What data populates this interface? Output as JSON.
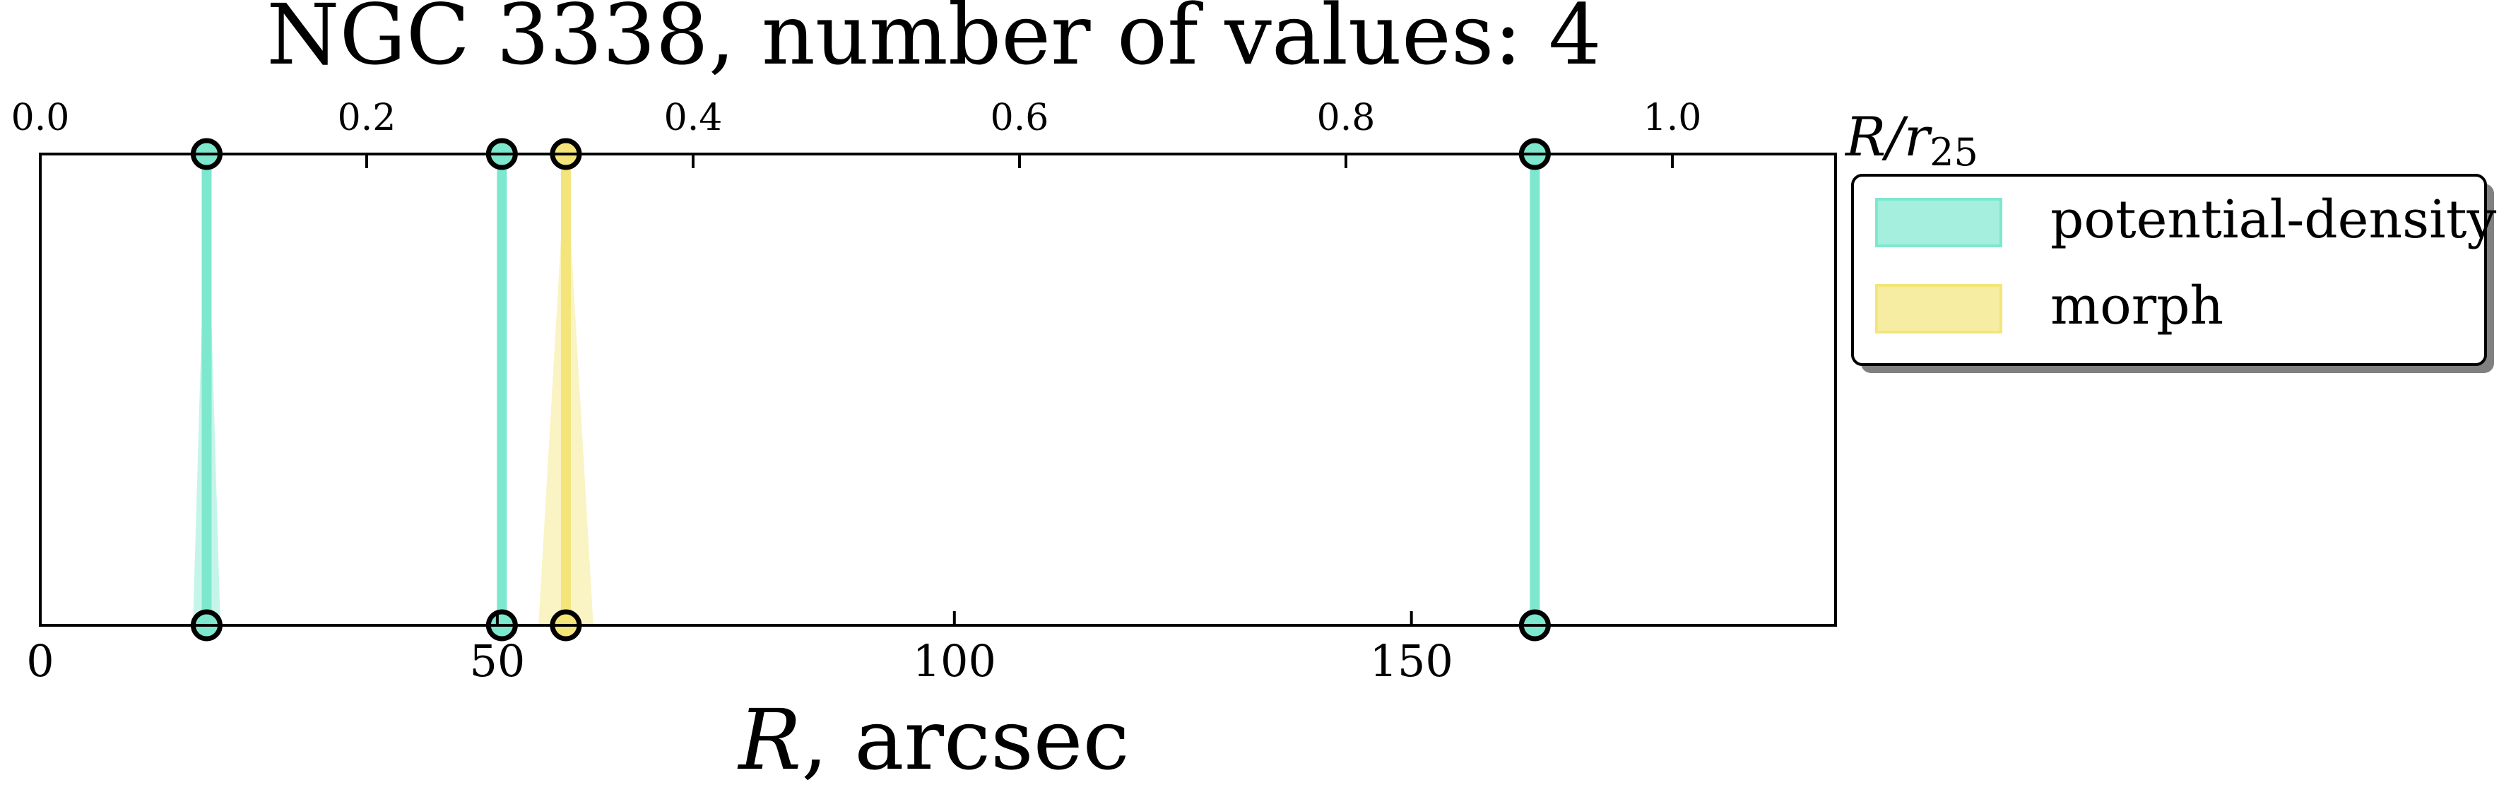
{
  "chart_data": {
    "type": "line",
    "title": "NGC 3338, number of values: 4",
    "xlabel": "R, arcsec",
    "xlabel_main": "R",
    "xlabel_unit": ", arcsec",
    "top_xlabel_main": "R/r",
    "top_xlabel_sub": "25",
    "xlim": [
      0,
      196.4
    ],
    "top_xlim": [
      0,
      1.1
    ],
    "x_ticks": [
      0,
      50,
      100,
      150
    ],
    "x_tick_labels": [
      "0",
      "50",
      "100",
      "150"
    ],
    "top_x_ticks": [
      0.0,
      0.2,
      0.4,
      0.6,
      0.8,
      1.0
    ],
    "top_x_tick_labels": [
      "0.0",
      "0.2",
      "0.4",
      "0.6",
      "0.8",
      "1.0"
    ],
    "ylim": [
      0,
      1
    ],
    "grid": false,
    "legend_position": "right of plot, top",
    "series": [
      {
        "name": "potential-density",
        "color": "#7ee8cf",
        "values": [
          {
            "r": 18.2,
            "err": 1.5
          },
          {
            "r": 50.5,
            "err": 0.5
          },
          {
            "r": 163.5,
            "err": 0.5
          }
        ]
      },
      {
        "name": "morph",
        "color": "#f3e57a",
        "values": [
          {
            "r": 57.5,
            "err": 3.0
          }
        ]
      }
    ],
    "legend": [
      "potential-density",
      "morph"
    ]
  }
}
